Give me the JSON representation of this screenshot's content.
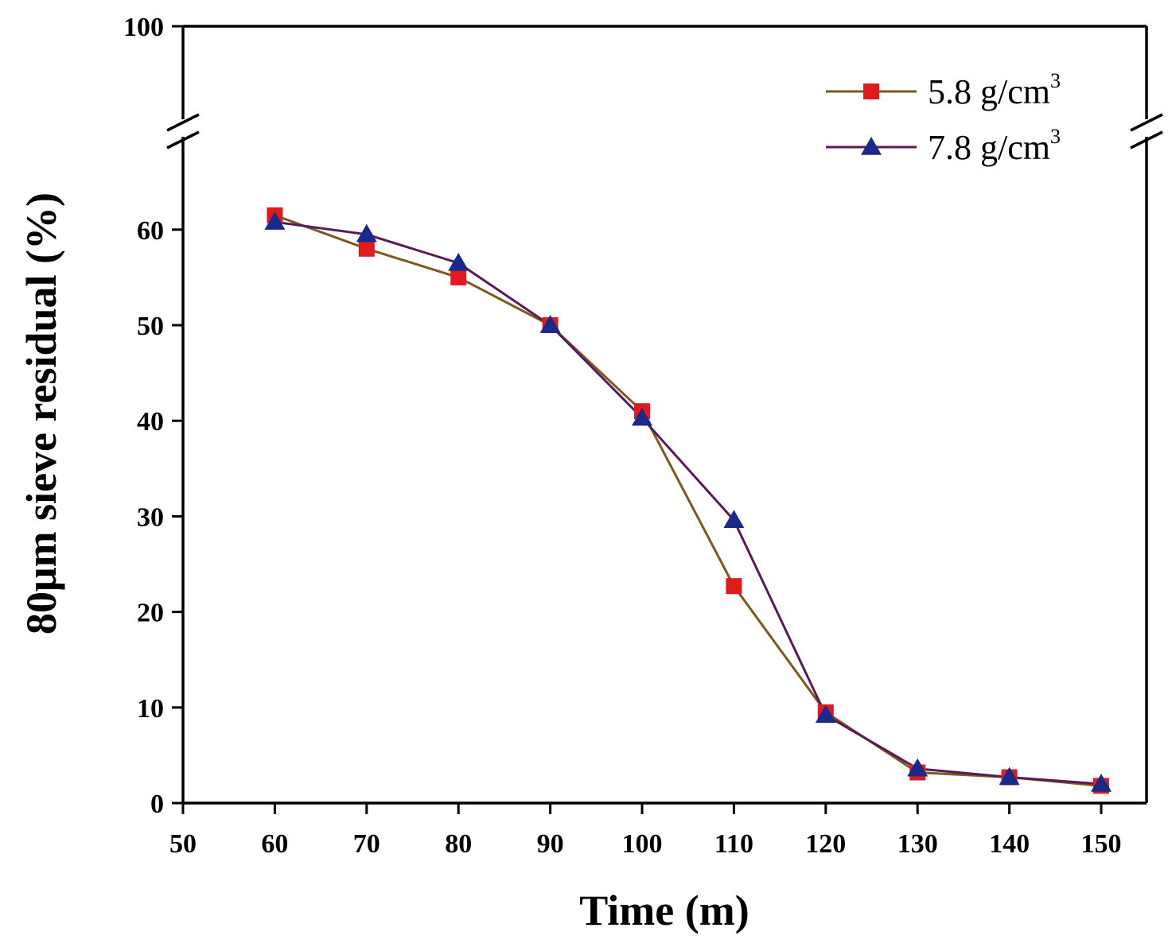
{
  "chart_data": {
    "type": "line",
    "title": "",
    "xlabel": "Time (m)",
    "ylabel": "80μm sieve residual (%)",
    "xlim": [
      50,
      155
    ],
    "ylim": [
      0,
      100
    ],
    "axis_break": [
      70,
      100
    ],
    "x_ticks": [
      "50",
      "60",
      "70",
      "80",
      "90",
      "100",
      "110",
      "120",
      "130",
      "140",
      "150"
    ],
    "y_ticks": [
      "0",
      "10",
      "20",
      "30",
      "40",
      "50",
      "60",
      "100"
    ],
    "y_tick_values": [
      0,
      10,
      20,
      30,
      40,
      50,
      60,
      100
    ],
    "legend_position": "top-right",
    "grid": false,
    "x": [
      60,
      70,
      80,
      90,
      100,
      110,
      120,
      130,
      140,
      150
    ],
    "series": [
      {
        "name": "5.8 g/cm",
        "name_sup": "3",
        "marker": "square",
        "line_color": "#7a5a1e",
        "marker_color": "#e31a1c",
        "values": [
          61.5,
          58.0,
          55.0,
          50.0,
          41.0,
          22.7,
          9.5,
          3.2,
          2.7,
          1.8
        ]
      },
      {
        "name": "7.8 g/cm",
        "name_sup": "3",
        "marker": "triangle",
        "line_color": "#5a1a5a",
        "marker_color": "#1a2a8c",
        "values": [
          60.8,
          59.5,
          56.5,
          50.0,
          40.3,
          29.6,
          9.2,
          3.6,
          2.7,
          2.0
        ]
      }
    ]
  }
}
